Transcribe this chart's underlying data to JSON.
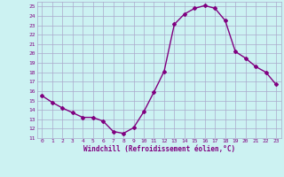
{
  "x": [
    0,
    1,
    2,
    3,
    4,
    5,
    6,
    7,
    8,
    9,
    10,
    11,
    12,
    13,
    14,
    15,
    16,
    17,
    18,
    19,
    20,
    21,
    22,
    23
  ],
  "y": [
    15.5,
    14.8,
    14.2,
    13.7,
    13.2,
    13.2,
    12.8,
    11.7,
    11.5,
    12.1,
    13.8,
    15.9,
    18.1,
    23.1,
    24.2,
    24.8,
    25.1,
    24.8,
    23.5,
    20.2,
    19.5,
    18.6,
    18.0,
    16.7
  ],
  "line_color": "#800080",
  "marker": "D",
  "marker_size": 2,
  "bg_color": "#ccf2f2",
  "grid_color": "#aaaacc",
  "xlabel": "Windchill (Refroidissement éolien,°C)",
  "xlabel_color": "#800080",
  "tick_color": "#800080",
  "ylim": [
    11,
    25.5
  ],
  "xlim": [
    -0.5,
    23.5
  ],
  "yticks": [
    11,
    12,
    13,
    14,
    15,
    16,
    17,
    18,
    19,
    20,
    21,
    22,
    23,
    24,
    25
  ],
  "xticks": [
    0,
    1,
    2,
    3,
    4,
    5,
    6,
    7,
    8,
    9,
    10,
    11,
    12,
    13,
    14,
    15,
    16,
    17,
    18,
    19,
    20,
    21,
    22,
    23
  ]
}
